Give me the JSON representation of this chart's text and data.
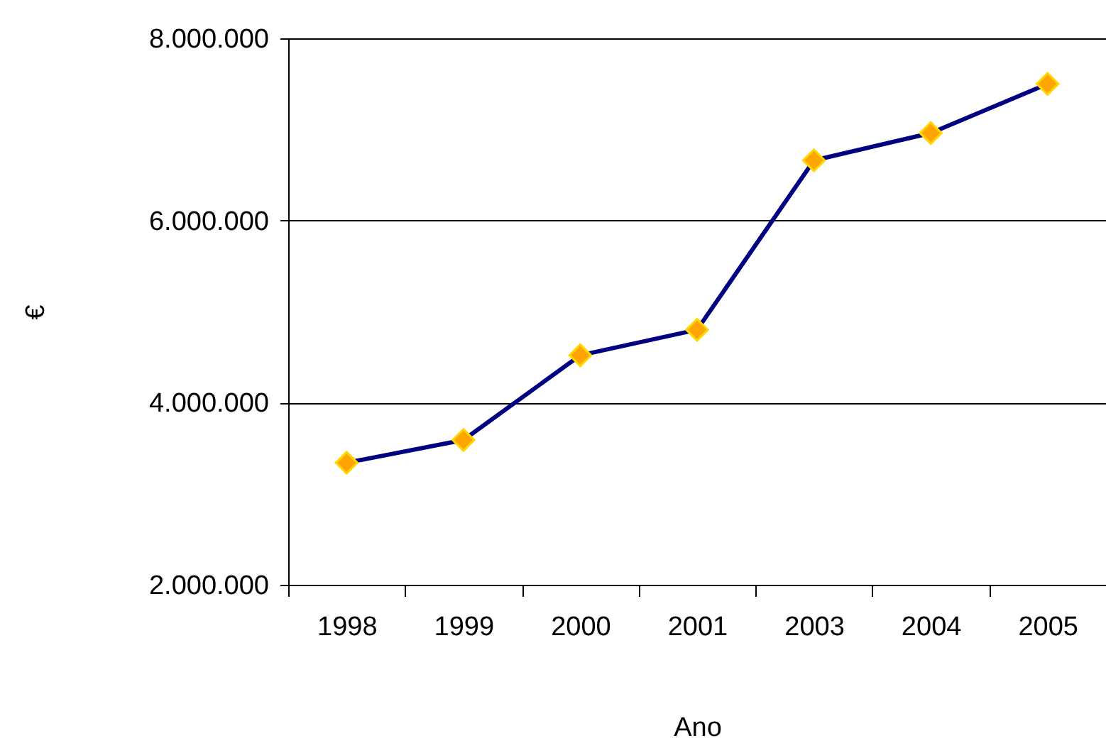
{
  "chart_data": {
    "type": "line",
    "xlabel": "Ano",
    "ylabel": "€",
    "categories": [
      "1998",
      "1999",
      "2000",
      "2001",
      "2003",
      "2004",
      "2005"
    ],
    "series": [
      {
        "color": "#000080",
        "colors": [
          "#ffa500",
          "#ffa500",
          "#ffa500",
          "#ffa500",
          "#ffa500",
          "#ffa500",
          "#ffa500"
        ],
        "values": [
          3340000,
          3590000,
          4520000,
          4800000,
          6660000,
          6960000,
          7500000
        ]
      }
    ],
    "ylim": [
      2000000,
      8000000
    ],
    "yticks": [
      {
        "value": 2000000,
        "label": "2.000.000"
      },
      {
        "value": 4000000,
        "label": "4.000.000"
      },
      {
        "value": 6000000,
        "label": "6.000.000"
      },
      {
        "value": 8000000,
        "label": "8.000.000"
      }
    ],
    "grid": "y",
    "marker": "diamond",
    "line_style": "solid"
  }
}
